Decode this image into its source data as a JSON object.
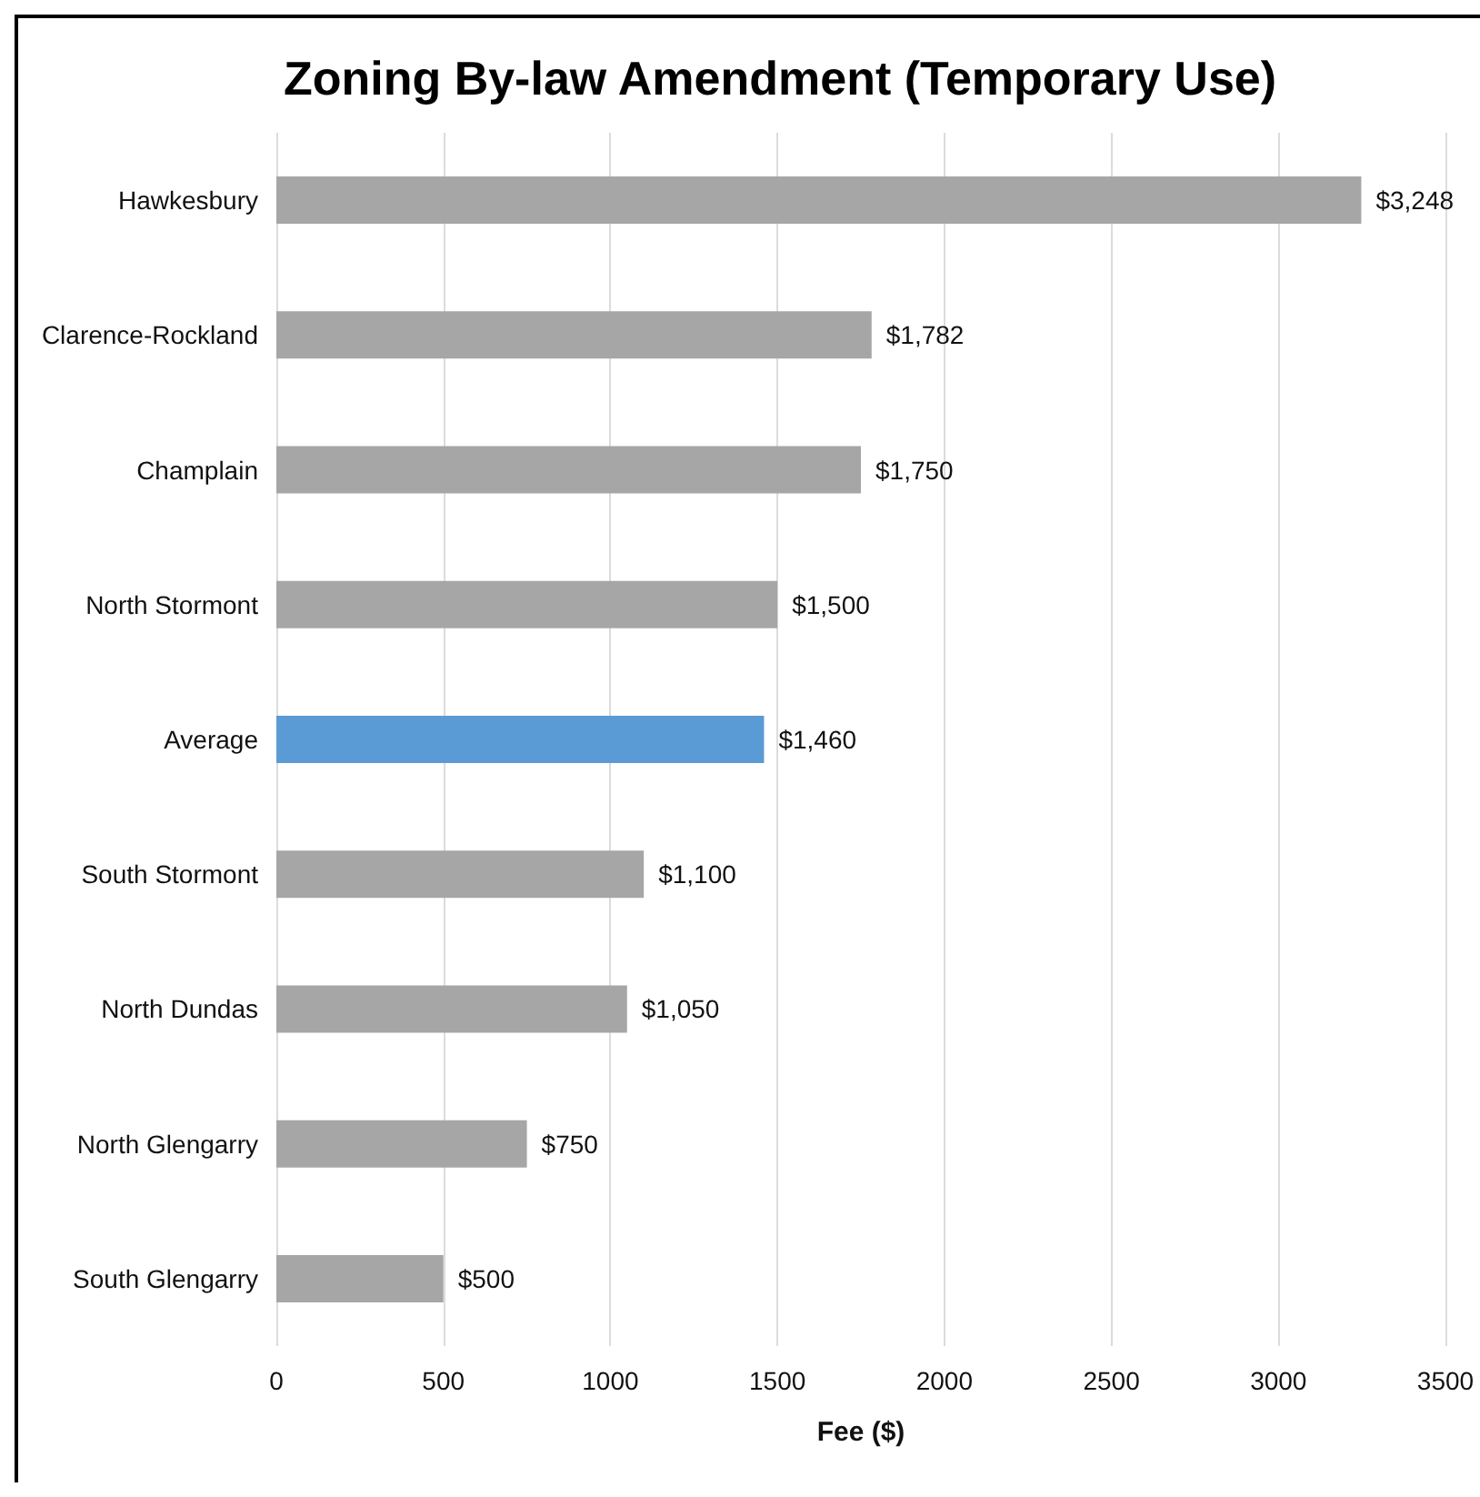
{
  "chart_data": {
    "type": "bar",
    "orientation": "horizontal",
    "title": "Zoning By-law Amendment (Temporary Use)",
    "xlabel": "Fee ($)",
    "categories": [
      "Hawkesbury",
      "Clarence-Rockland",
      "Champlain",
      "North Stormont",
      "Average",
      "South Stormont",
      "North Dundas",
      "North Glengarry",
      "South Glengarry"
    ],
    "values": [
      3248,
      1782,
      1750,
      1500,
      1460,
      1100,
      1050,
      750,
      500
    ],
    "colors": [
      "#a6a6a6",
      "#a6a6a6",
      "#a6a6a6",
      "#a6a6a6",
      "#5b9bd5",
      "#a6a6a6",
      "#a6a6a6",
      "#a6a6a6",
      "#a6a6a6"
    ],
    "value_labels": [
      "$3,248",
      "$1,782",
      "$1,750",
      "$1,500",
      "$1,460",
      "$1,100",
      "$1,050",
      "$750",
      "$500"
    ],
    "xlim": [
      0,
      3500
    ],
    "xticks": [
      0,
      500,
      1000,
      1500,
      2000,
      2500,
      3000,
      3500
    ],
    "grid": "x"
  }
}
